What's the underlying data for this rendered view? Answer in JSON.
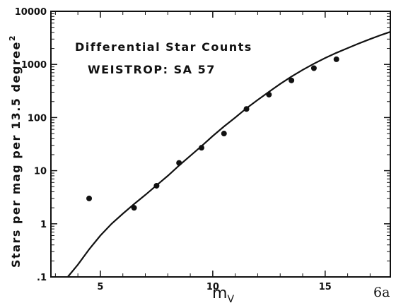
{
  "chart_data": {
    "type": "scatter",
    "title": "Differential Star Counts",
    "subtitle": "WEISTROP: SA 57",
    "xlabel": "m",
    "xlabel_sub": "V",
    "ylabel": "Stars per mag per 13.5 degree",
    "ylabel_sup": "2",
    "figure_label": "6a",
    "xlim": [
      2.8,
      17.9
    ],
    "ylim": [
      0.1,
      10000
    ],
    "yscale": "log",
    "grid": false,
    "x_ticks": [
      {
        "value": 5,
        "label": "5"
      },
      {
        "value": 10,
        "label": "10"
      },
      {
        "value": 15,
        "label": "15"
      }
    ],
    "y_ticks": [
      {
        "value": 0.1,
        "label": ".1"
      },
      {
        "value": 1,
        "label": "1"
      },
      {
        "value": 10,
        "label": "10"
      },
      {
        "value": 100,
        "label": "100"
      },
      {
        "value": 1000,
        "label": "1000"
      },
      {
        "value": 10000,
        "label": "10000"
      }
    ],
    "series": [
      {
        "type": "scatter",
        "points": [
          {
            "x": 4.5,
            "y": 3.0
          },
          {
            "x": 6.5,
            "y": 2.0
          },
          {
            "x": 7.5,
            "y": 5.2
          },
          {
            "x": 8.5,
            "y": 14
          },
          {
            "x": 9.5,
            "y": 27
          },
          {
            "x": 10.5,
            "y": 50
          },
          {
            "x": 11.5,
            "y": 145
          },
          {
            "x": 12.5,
            "y": 270
          },
          {
            "x": 13.5,
            "y": 500
          },
          {
            "x": 14.5,
            "y": 850
          },
          {
            "x": 15.5,
            "y": 1250
          }
        ]
      },
      {
        "type": "line",
        "points": [
          {
            "x": 3.55,
            "y": 0.1
          },
          {
            "x": 4.0,
            "y": 0.17
          },
          {
            "x": 4.5,
            "y": 0.33
          },
          {
            "x": 5.0,
            "y": 0.6
          },
          {
            "x": 5.5,
            "y": 1.0
          },
          {
            "x": 6.0,
            "y": 1.55
          },
          {
            "x": 6.5,
            "y": 2.35
          },
          {
            "x": 7.0,
            "y": 3.5
          },
          {
            "x": 7.5,
            "y": 5.3
          },
          {
            "x": 8.0,
            "y": 8.0
          },
          {
            "x": 8.5,
            "y": 12.5
          },
          {
            "x": 9.0,
            "y": 19
          },
          {
            "x": 9.5,
            "y": 29
          },
          {
            "x": 10.0,
            "y": 45
          },
          {
            "x": 10.5,
            "y": 68
          },
          {
            "x": 11.0,
            "y": 100
          },
          {
            "x": 11.5,
            "y": 150
          },
          {
            "x": 12.0,
            "y": 215
          },
          {
            "x": 12.5,
            "y": 305
          },
          {
            "x": 13.0,
            "y": 430
          },
          {
            "x": 13.5,
            "y": 590
          },
          {
            "x": 14.0,
            "y": 790
          },
          {
            "x": 14.5,
            "y": 1030
          },
          {
            "x": 15.0,
            "y": 1320
          },
          {
            "x": 15.5,
            "y": 1650
          },
          {
            "x": 16.0,
            "y": 2030
          },
          {
            "x": 16.5,
            "y": 2480
          },
          {
            "x": 17.0,
            "y": 3000
          },
          {
            "x": 17.5,
            "y": 3600
          },
          {
            "x": 17.9,
            "y": 4100
          }
        ]
      }
    ]
  }
}
